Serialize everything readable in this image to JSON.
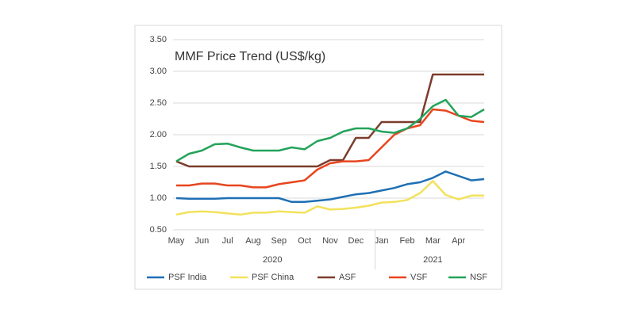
{
  "chart_data": {
    "type": "line",
    "title": "MMF Price Trend (US$/kg)",
    "categories": [
      "May",
      null,
      "Jun",
      null,
      "Jul",
      null,
      "Aug",
      null,
      "Sep",
      null,
      "Oct",
      null,
      "Nov",
      null,
      "Dec",
      null,
      "Jan",
      null,
      "Feb",
      null,
      "Mar",
      null,
      "Apr",
      null,
      null
    ],
    "year_labels": [
      "2020",
      "2021"
    ],
    "ylim": [
      0.5,
      3.5
    ],
    "yticks": [
      {
        "value": 0.5,
        "label": "0.50"
      },
      {
        "value": 1,
        "label": "1.00"
      },
      {
        "value": 1.5,
        "label": "1.50"
      },
      {
        "value": 2,
        "label": "2.00"
      },
      {
        "value": 2.5,
        "label": "2.50"
      },
      {
        "value": 3,
        "label": "3.00"
      },
      {
        "value": 3.5,
        "label": "3.50"
      }
    ],
    "grid": true,
    "legend": "bottom",
    "series": [
      {
        "name": "PSF India",
        "color": "#1f6fb4",
        "values": [
          1.0,
          0.99,
          0.99,
          0.99,
          1.0,
          1.0,
          1.0,
          1.0,
          1.0,
          0.94,
          0.94,
          0.96,
          0.98,
          1.02,
          1.06,
          1.08,
          1.12,
          1.16,
          1.22,
          1.25,
          1.32,
          1.42,
          1.35,
          1.28,
          1.3
        ]
      },
      {
        "name": "PSF China",
        "color": "#f2e25c",
        "values": [
          0.74,
          0.78,
          0.79,
          0.78,
          0.76,
          0.74,
          0.77,
          0.77,
          0.79,
          0.78,
          0.77,
          0.87,
          0.82,
          0.83,
          0.85,
          0.88,
          0.93,
          0.94,
          0.97,
          1.08,
          1.27,
          1.05,
          0.98,
          1.04,
          1.04
        ]
      },
      {
        "name": "ASF",
        "color": "#7b3d2c",
        "values": [
          1.58,
          1.5,
          1.5,
          1.5,
          1.5,
          1.5,
          1.5,
          1.5,
          1.5,
          1.5,
          1.5,
          1.5,
          1.6,
          1.6,
          1.95,
          1.95,
          2.2,
          2.2,
          2.2,
          2.2,
          2.95,
          2.95,
          2.95,
          2.95,
          2.95
        ]
      },
      {
        "name": "VSF",
        "color": "#e8451e",
        "values": [
          1.2,
          1.2,
          1.23,
          1.23,
          1.2,
          1.2,
          1.17,
          1.17,
          1.22,
          1.25,
          1.28,
          1.45,
          1.55,
          1.58,
          1.58,
          1.6,
          1.8,
          2.0,
          2.1,
          2.15,
          2.4,
          2.38,
          2.3,
          2.22,
          2.2
        ]
      },
      {
        "name": "NSF",
        "color": "#23a35a",
        "values": [
          1.58,
          1.7,
          1.75,
          1.85,
          1.86,
          1.8,
          1.75,
          1.75,
          1.75,
          1.8,
          1.77,
          1.9,
          1.95,
          2.05,
          2.1,
          2.1,
          2.05,
          2.03,
          2.1,
          2.25,
          2.45,
          2.55,
          2.3,
          2.28,
          2.4
        ]
      }
    ]
  }
}
